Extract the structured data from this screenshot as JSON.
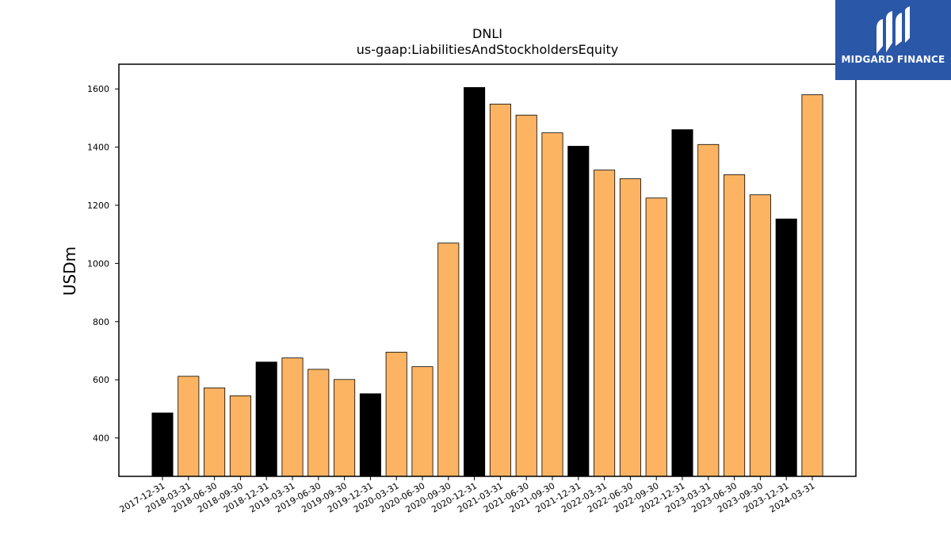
{
  "chart_data": {
    "type": "bar",
    "title": "DNLI",
    "subtitle": "us-gaap:LiabilitiesAndStockholdersEquity",
    "xlabel": "",
    "ylabel": "USDm",
    "ylim": [
      268,
      1685
    ],
    "yticks": [
      400,
      600,
      800,
      1000,
      1200,
      1400,
      1600
    ],
    "categories": [
      "2017-12-31",
      "2018-03-31",
      "2018-06-30",
      "2018-09-30",
      "2018-12-31",
      "2019-03-31",
      "2019-06-30",
      "2019-09-30",
      "2019-12-31",
      "2020-03-31",
      "2020-06-30",
      "2020-09-30",
      "2020-12-31",
      "2021-03-31",
      "2021-06-30",
      "2021-09-30",
      "2021-12-31",
      "2022-03-31",
      "2022-06-30",
      "2022-09-30",
      "2022-12-31",
      "2023-03-31",
      "2023-06-30",
      "2023-09-30",
      "2023-12-31",
      "2024-03-31"
    ],
    "values": [
      486,
      612,
      572,
      545,
      661,
      675,
      636,
      601,
      552,
      695,
      645,
      1070,
      1605,
      1548,
      1510,
      1449,
      1403,
      1321,
      1291,
      1225,
      1460,
      1409,
      1305,
      1236,
      1153,
      1580
    ],
    "year_end_color": "#000000",
    "quarter_color": "#fdb462",
    "grid": false
  },
  "brand": {
    "name": "MIDGARD FINANCE",
    "color": "#2b57a8",
    "icon": "midgard-logo-icon"
  }
}
